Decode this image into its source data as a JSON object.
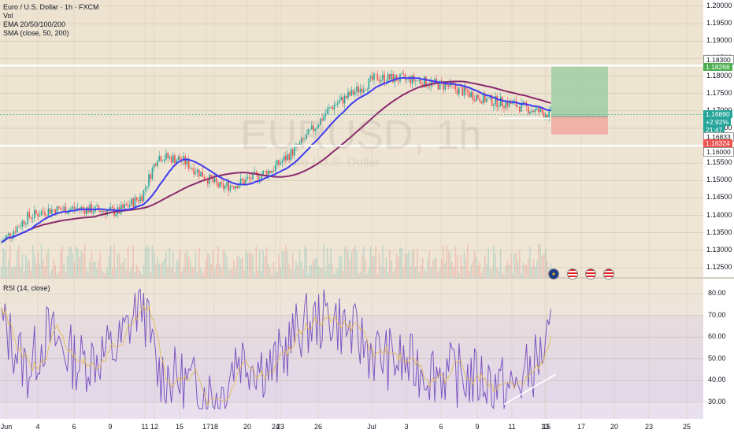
{
  "legend": {
    "symbol": "Euro / U.S. Dollar · 1h · FXCM",
    "vol": "Vol",
    "ema": "EMA 20/50/100/200",
    "sma": "SMA (close, 50, 200)",
    "rsi": "RSI (14, close)"
  },
  "watermark": {
    "ticker": "EURUSD, 1h",
    "name": "Euro / U.S. Dollar"
  },
  "price_axis": [
    "1.20000",
    "1.19500",
    "1.19000",
    "1.18500",
    "1.18000",
    "1.17500",
    "1.17000",
    "1.16500",
    "1.16000",
    "1.15500",
    "1.15000",
    "1.14500",
    "1.14000",
    "1.13500",
    "1.13000",
    "1.12500"
  ],
  "price_tags": {
    "resistance": "1.18300",
    "target": "1.18266",
    "current": "1.16890",
    "change": "+2.92%",
    "countdown": "21:47",
    "entry": "1.16833",
    "stop": "1.16324",
    "support": "1.16000"
  },
  "rsi_axis": [
    "80.00",
    "70.00",
    "60.00",
    "50.00",
    "40.00",
    "30.00"
  ],
  "date_axis": [
    "Jun",
    "4",
    "6",
    "9",
    "11",
    "12",
    "15",
    "17",
    "18",
    "20",
    "23",
    "24",
    "26",
    "Jul",
    "3",
    "6",
    "9",
    "11",
    "13",
    "15",
    "17",
    "20",
    "23",
    "25"
  ],
  "events": [
    "eu-flag-icon",
    "us-flag-icon",
    "us-flag-icon",
    "us-flag-icon"
  ],
  "colors": {
    "ema_fast": "#3c3cf0",
    "sma_slow": "#8a2a6e",
    "candle_up": "#26a69a",
    "candle_down": "#ef5350",
    "rsi_line": "#7e57c2",
    "target_zone": "#8fc79a",
    "stop_zone": "#f0a49c"
  },
  "chart_data": {
    "type": "line",
    "series": [
      {
        "name": "Euro / U.S. Dollar · 1h · FXCM",
        "x": [
          "Jun",
          "4",
          "6",
          "9",
          "11",
          "12",
          "15",
          "17",
          "18",
          "20",
          "23",
          "24",
          "26",
          "Jul",
          "3",
          "6",
          "9",
          "11",
          "13",
          "15"
        ],
        "values": [
          1.132,
          1.1395,
          1.1415,
          1.142,
          1.141,
          1.1455,
          1.157,
          1.156,
          1.148,
          1.149,
          1.153,
          1.16,
          1.171,
          1.1795,
          1.179,
          1.177,
          1.173,
          1.172,
          1.17,
          1.1689
        ]
      },
      {
        "name": "RSI (14, close)",
        "x": [
          "Jun",
          "4",
          "6",
          "9",
          "11",
          "12",
          "15",
          "17",
          "18",
          "20",
          "23",
          "24",
          "26",
          "Jul",
          "3",
          "6",
          "9",
          "11",
          "13",
          "15"
        ],
        "values": [
          68,
          45,
          62,
          48,
          55,
          78,
          44,
          40,
          32,
          52,
          45,
          64,
          70,
          52,
          47,
          43,
          40,
          35,
          48,
          59
        ]
      }
    ],
    "ylim": [
      1.125,
      1.2
    ],
    "rsi_ylim": [
      25,
      85
    ]
  }
}
